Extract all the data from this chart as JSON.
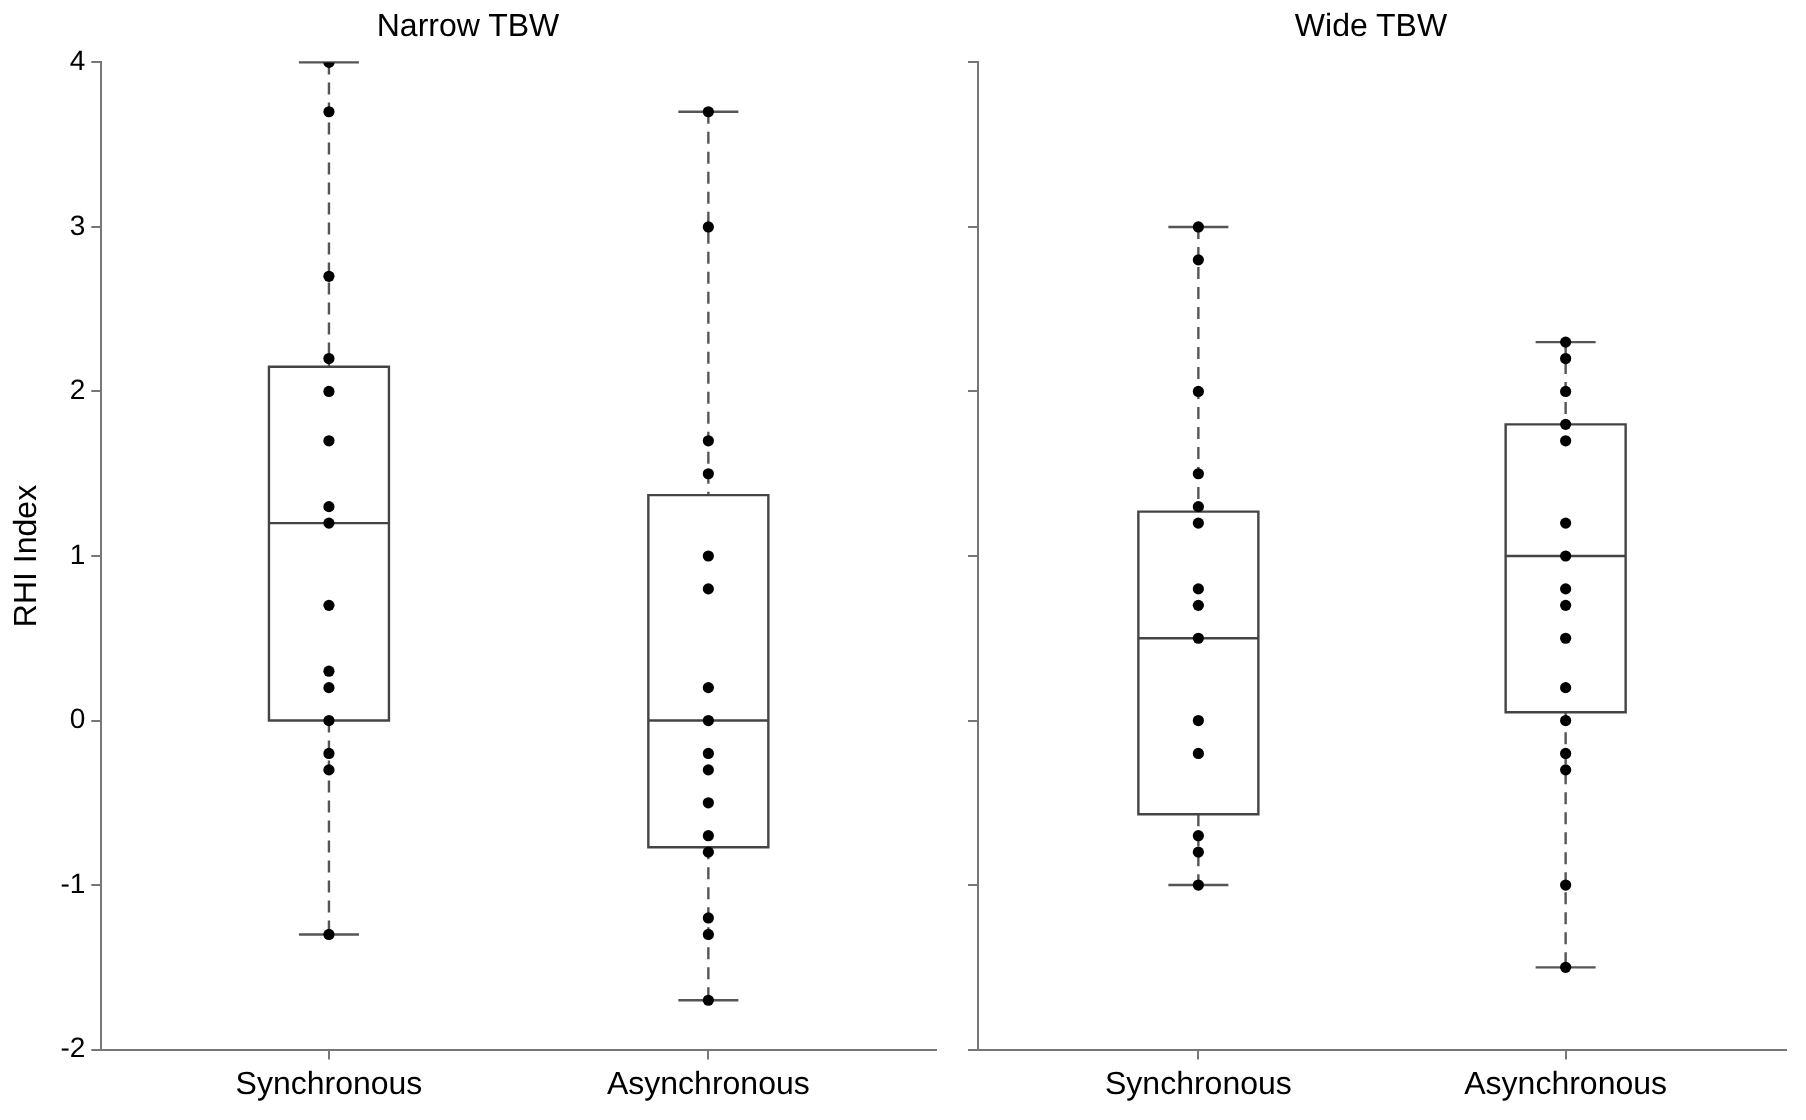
{
  "chart_data": [
    {
      "type": "box",
      "title": "Narrow TBW",
      "ylabel": "RHI Index",
      "categories": [
        "Synchronous",
        "Asynchronous"
      ],
      "ylim": [
        -2,
        4
      ],
      "yticks": [
        -2,
        -1,
        0,
        1,
        2,
        3,
        4
      ],
      "grid": false,
      "legend": false,
      "line_style": "dashed",
      "boxes": [
        {
          "low": -1.3,
          "q1": 0,
          "median": 1.2,
          "q3": 2.15,
          "high": 4
        },
        {
          "low": -1.7,
          "q1": -0.77,
          "median": 0,
          "q3": 1.37,
          "high": 3.7
        }
      ],
      "series": [
        {
          "type": "scatter",
          "color": "#000000",
          "marker": "circle",
          "x": [
            "Synchronous",
            "Synchronous",
            "Synchronous",
            "Synchronous",
            "Synchronous",
            "Synchronous",
            "Synchronous",
            "Synchronous",
            "Synchronous",
            "Synchronous",
            "Synchronous",
            "Synchronous",
            "Synchronous",
            "Synchronous",
            "Synchronous",
            "Asynchronous",
            "Asynchronous",
            "Asynchronous",
            "Asynchronous",
            "Asynchronous",
            "Asynchronous",
            "Asynchronous",
            "Asynchronous",
            "Asynchronous",
            "Asynchronous",
            "Asynchronous",
            "Asynchronous",
            "Asynchronous",
            "Asynchronous",
            "Asynchronous",
            "Asynchronous"
          ],
          "values": [
            4,
            3.7,
            2.7,
            2.2,
            2.0,
            1.7,
            1.3,
            1.2,
            0.7,
            0.3,
            0.2,
            0,
            -0.2,
            -0.3,
            -1.3,
            3.7,
            3.0,
            1.7,
            1.5,
            1.0,
            0.8,
            0.2,
            0,
            -0.2,
            -0.3,
            -0.5,
            -0.7,
            -0.8,
            -1.2,
            -1.3,
            -1.7
          ]
        }
      ]
    },
    {
      "type": "box",
      "title": "Wide TBW",
      "categories": [
        "Synchronous",
        "Asynchronous"
      ],
      "ylim": [
        -2,
        4
      ],
      "yticks": [
        -2,
        -1,
        0,
        1,
        2,
        3,
        4
      ],
      "tick_labels": "x",
      "grid": false,
      "legend": false,
      "line_style": "dashed",
      "boxes": [
        {
          "low": -1.0,
          "q1": -0.57,
          "median": 0.5,
          "q3": 1.27,
          "high": 3.0
        },
        {
          "low": -1.5,
          "q1": 0.05,
          "median": 1.0,
          "q3": 1.8,
          "high": 2.3
        }
      ],
      "series": [
        {
          "type": "scatter",
          "color": "#000000",
          "marker": "circle",
          "x": [
            "Synchronous",
            "Synchronous",
            "Synchronous",
            "Synchronous",
            "Synchronous",
            "Synchronous",
            "Synchronous",
            "Synchronous",
            "Synchronous",
            "Synchronous",
            "Synchronous",
            "Synchronous",
            "Synchronous",
            "Synchronous",
            "Asynchronous",
            "Asynchronous",
            "Asynchronous",
            "Asynchronous",
            "Asynchronous",
            "Asynchronous",
            "Asynchronous",
            "Asynchronous",
            "Asynchronous",
            "Asynchronous",
            "Asynchronous",
            "Asynchronous",
            "Asynchronous",
            "Asynchronous",
            "Asynchronous",
            "Asynchronous"
          ],
          "values": [
            3.0,
            2.8,
            2.0,
            1.5,
            1.3,
            1.2,
            0.8,
            0.7,
            0.5,
            0,
            -0.2,
            -0.7,
            -0.8,
            -1.0,
            2.3,
            2.2,
            2.0,
            1.8,
            1.7,
            1.2,
            1.0,
            0.8,
            0.7,
            0.5,
            0.2,
            0,
            -0.2,
            -0.3,
            -1.0,
            -1.5
          ]
        }
      ]
    }
  ]
}
